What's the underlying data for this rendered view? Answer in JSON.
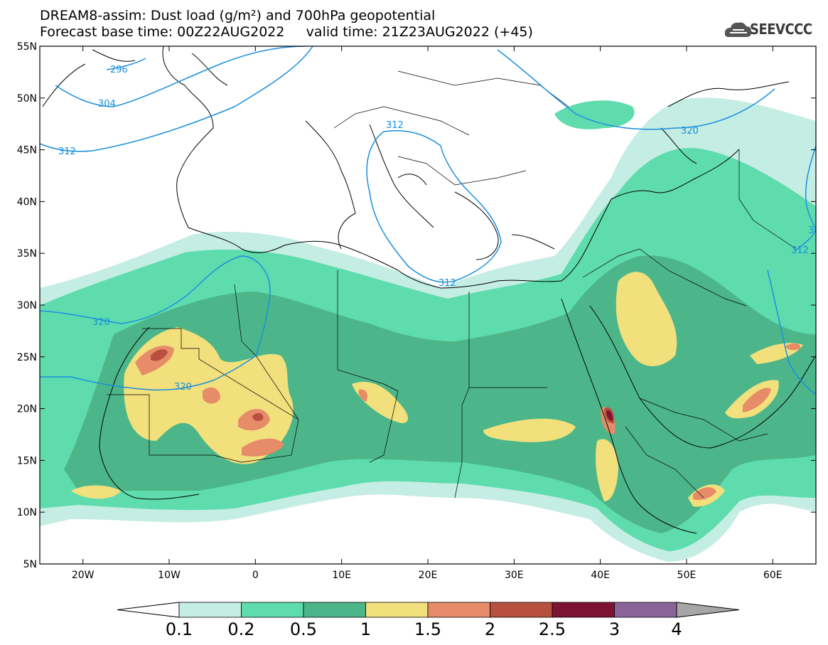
{
  "title": {
    "line1": "DREAM8-assim: Dust load (g/m²) and 700hPa geopotential",
    "line2": "Forecast base time: 00Z22AUG2022     valid time: 21Z23AUG2022 (+45)"
  },
  "logo": {
    "text": "SEEVCCC",
    "icon": "cloud-logo-icon"
  },
  "map": {
    "lon_range": [
      -25,
      65
    ],
    "lat_range": [
      5,
      55
    ],
    "lat_ticks": [
      "55N",
      "50N",
      "45N",
      "40N",
      "35N",
      "30N",
      "25N",
      "20N",
      "15N",
      "10N",
      "5N"
    ],
    "lon_ticks": [
      "20W",
      "10W",
      "0",
      "10E",
      "20E",
      "30E",
      "40E",
      "50E",
      "60E"
    ],
    "lat_tick_values": [
      55,
      50,
      45,
      40,
      35,
      30,
      25,
      20,
      15,
      10,
      5
    ],
    "lon_tick_values": [
      -20,
      -10,
      0,
      10,
      20,
      30,
      40,
      50,
      60
    ],
    "contour_labels": [
      "296",
      "304",
      "312",
      "312",
      "312",
      "320",
      "320",
      "320",
      "312",
      "3"
    ],
    "contour_color": "#1a8fe0"
  },
  "colorbar": {
    "levels": [
      "0.1",
      "0.2",
      "0.5",
      "1",
      "1.5",
      "2",
      "2.5",
      "3",
      "4"
    ],
    "colors": [
      "#c4ede3",
      "#5fdcad",
      "#4cb68a",
      "#f1e07c",
      "#e68c68",
      "#b8503f",
      "#7d1332",
      "#8a6399"
    ],
    "low_color": "#ffffff",
    "high_color": "#a6a6a6"
  }
}
